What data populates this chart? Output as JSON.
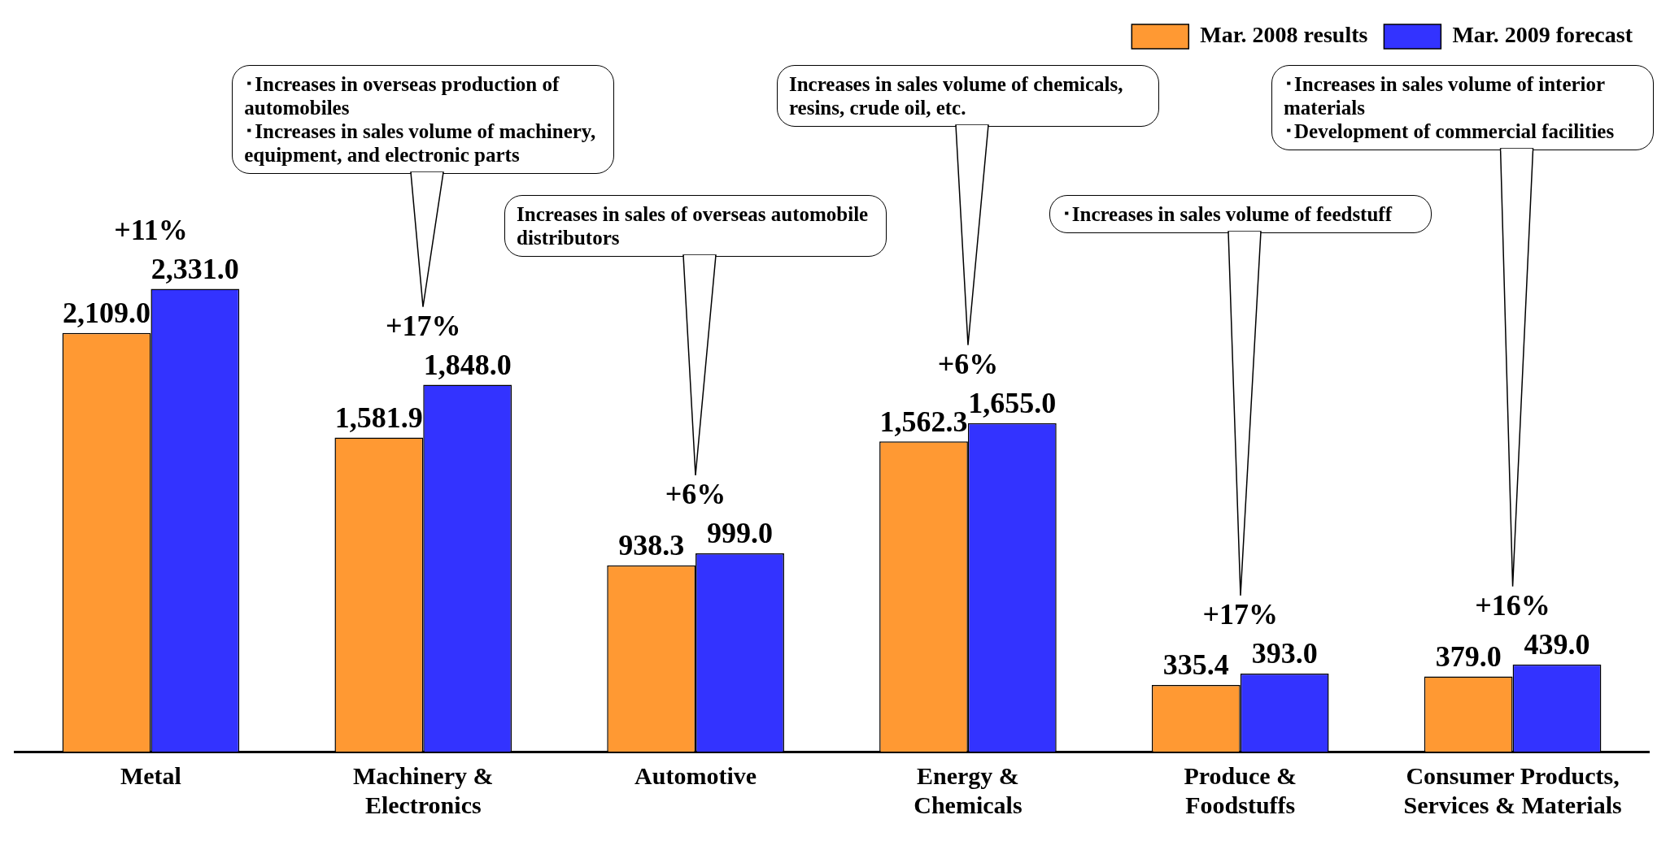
{
  "chart_data": {
    "type": "bar",
    "categories": [
      "Metal",
      "Machinery & Electronics",
      "Automotive",
      "Energy & Chemicals",
      "Produce & Foodstuffs",
      "Consumer Products, Services & Materials"
    ],
    "series": [
      {
        "name": "Mar. 2008 results",
        "color": "#ff9933",
        "values": [
          2109.0,
          1581.9,
          938.3,
          1562.3,
          335.4,
          379.0
        ],
        "value_labels": [
          "2,109.0",
          "1,581.9",
          "938.3",
          "1,562.3",
          "335.4",
          "379.0"
        ]
      },
      {
        "name": "Mar. 2009 forecast",
        "color": "#3333ff",
        "values": [
          2331.0,
          1848.0,
          999.0,
          1655.0,
          393.0,
          439.0
        ],
        "value_labels": [
          "2,331.0",
          "1,848.0",
          "999.0",
          "1,655.0",
          "393.0",
          "439.0"
        ]
      }
    ],
    "legend": "top right",
    "grid": false,
    "annotations": [
      {
        "text": "+11%",
        "x": "Metal",
        "y": 2331.0
      },
      {
        "text": "+17%",
        "x": "Machinery & Electronics",
        "y": 1848.0
      },
      {
        "text": "+6%",
        "x": "Automotive",
        "y": 999.0
      },
      {
        "text": "+6%",
        "x": "Energy & Chemicals",
        "y": 1655.0
      },
      {
        "text": "+17%",
        "x": "Produce & Foodstuffs",
        "y": 393.0
      },
      {
        "text": "+16%",
        "x": "Consumer Products, Services & Materials",
        "y": 439.0
      },
      "･Increases in overseas production of automobiles\n･Increases in sales volume of machinery, equipment, and electronic parts",
      "Increases in sales of overseas automobile distributors",
      "Increases in sales volume of chemicals, resins, crude oil, etc.",
      "･Increases in sales volume of feedstuff",
      "･Increases in sales volume of interior materials\n･Development of commercial facilities"
    ]
  }
}
